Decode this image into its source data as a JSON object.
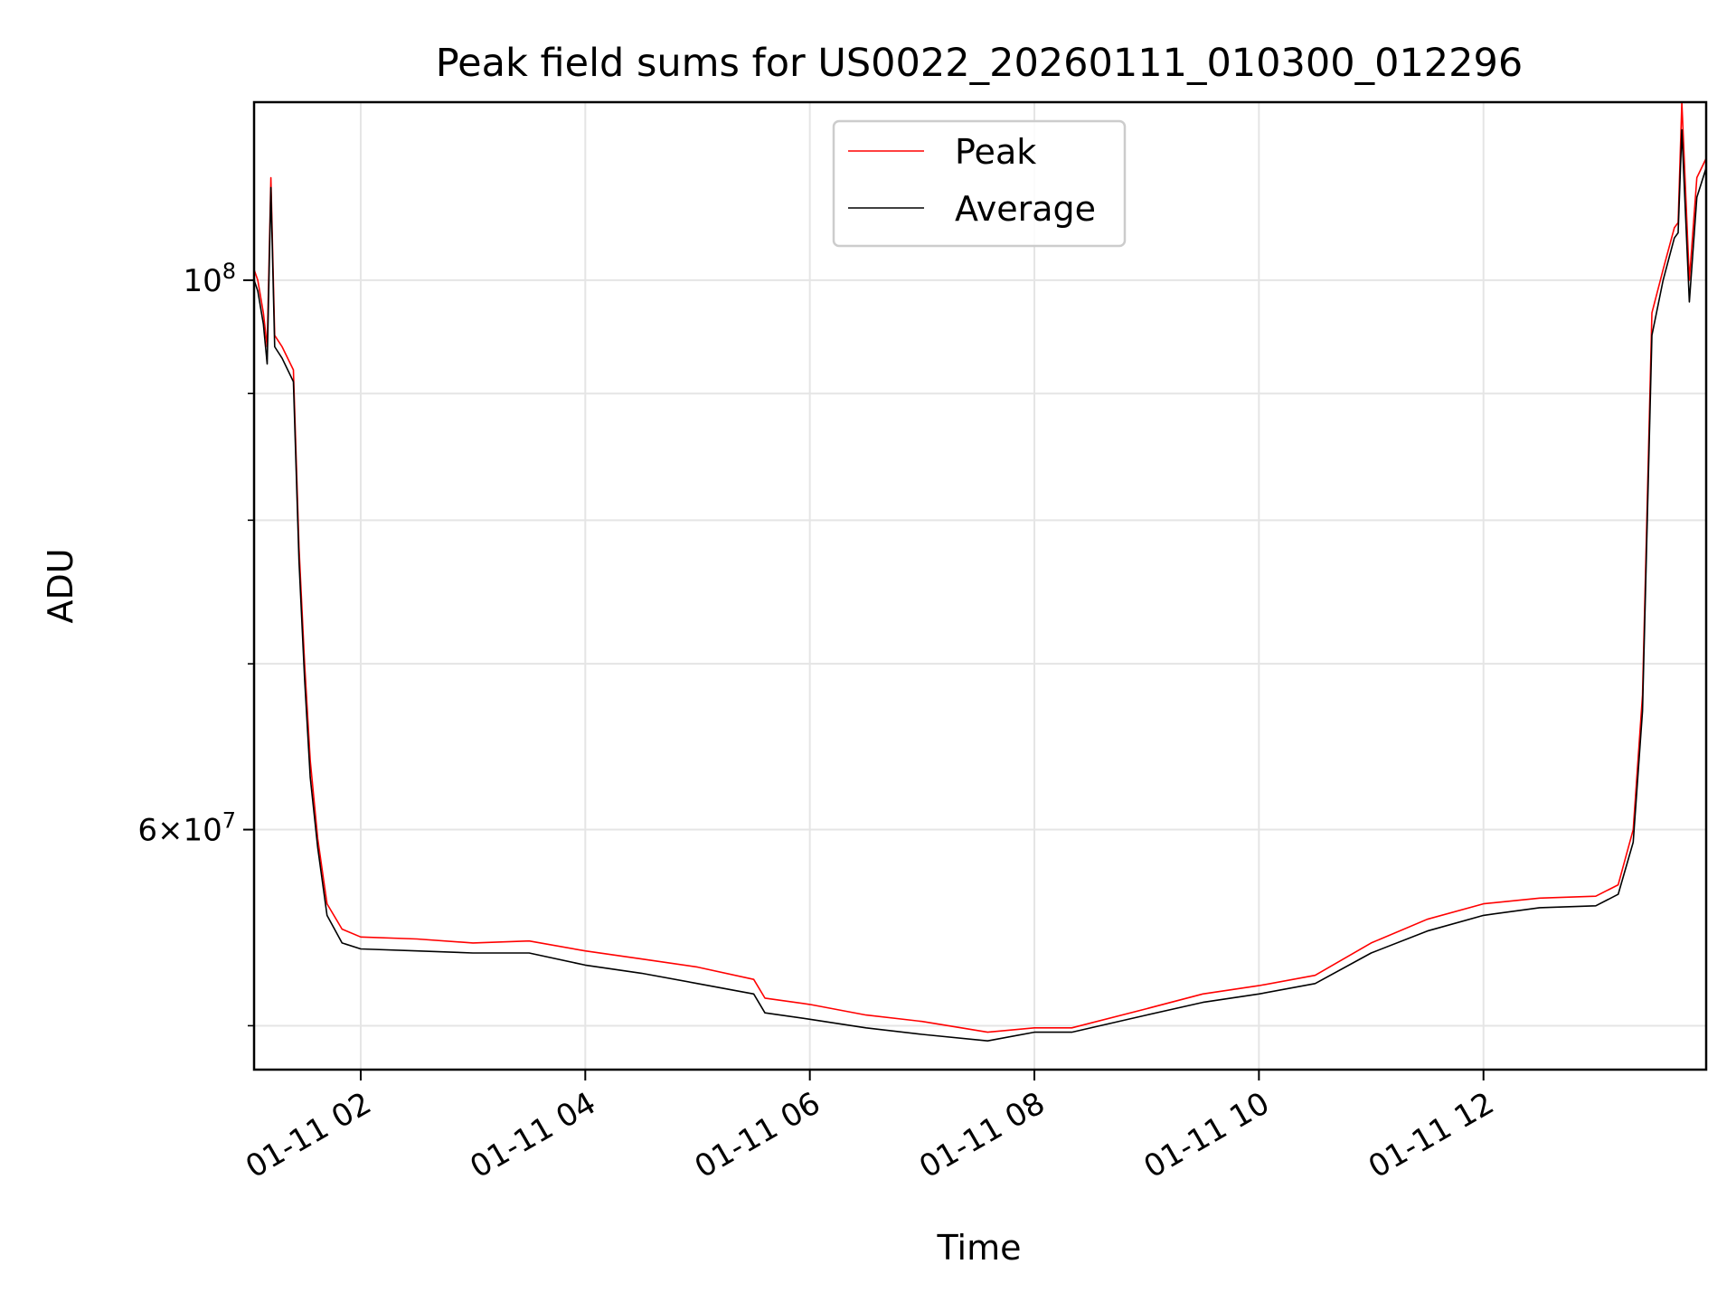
{
  "chart_data": {
    "type": "line",
    "title": "Peak field sums for US0022_20260111_010300_012296",
    "xlabel": "Time",
    "ylabel": "ADU",
    "y_scale": "log",
    "grid": true,
    "legend_placement": "upper center",
    "x_tick_labels": [
      "01-11 02",
      "01-11 04",
      "01-11 06",
      "01-11 08",
      "01-11 10",
      "01-11 12"
    ],
    "y_tick_labels": [
      {
        "value": 100000000,
        "mantissa": "",
        "exponent": "8"
      },
      {
        "value": 60000000,
        "mantissa": "6",
        "exponent": "7"
      }
    ],
    "xlim": [
      "2026-01-11 01:03",
      "2026-01-11 13:59"
    ],
    "ylim": [
      48000000,
      118000000
    ],
    "series": [
      {
        "name": "Peak",
        "color": "#ff0000",
        "points": [
          [
            "2026-01-11 01:03",
            101000000
          ],
          [
            "2026-01-11 01:05",
            100000000
          ],
          [
            "2026-01-11 01:08",
            97000000
          ],
          [
            "2026-01-11 01:10",
            94000000
          ],
          [
            "2026-01-11 01:12",
            110000000
          ],
          [
            "2026-01-11 01:14",
            95000000
          ],
          [
            "2026-01-11 01:18",
            94000000
          ],
          [
            "2026-01-11 01:24",
            92000000
          ],
          [
            "2026-01-11 01:27",
            78000000
          ],
          [
            "2026-01-11 01:30",
            70000000
          ],
          [
            "2026-01-11 01:33",
            64000000
          ],
          [
            "2026-01-11 01:37",
            59500000
          ],
          [
            "2026-01-11 01:42",
            56000000
          ],
          [
            "2026-01-11 01:50",
            54700000
          ],
          [
            "2026-01-11 02:00",
            54300000
          ],
          [
            "2026-01-11 02:30",
            54200000
          ],
          [
            "2026-01-11 03:00",
            54000000
          ],
          [
            "2026-01-11 03:30",
            54100000
          ],
          [
            "2026-01-11 04:00",
            53600000
          ],
          [
            "2026-01-11 04:30",
            53200000
          ],
          [
            "2026-01-11 05:00",
            52800000
          ],
          [
            "2026-01-11 05:30",
            52200000
          ],
          [
            "2026-01-11 05:36",
            51300000
          ],
          [
            "2026-01-11 06:00",
            51000000
          ],
          [
            "2026-01-11 06:30",
            50500000
          ],
          [
            "2026-01-11 07:00",
            50200000
          ],
          [
            "2026-01-11 07:35",
            49700000
          ],
          [
            "2026-01-11 08:00",
            49900000
          ],
          [
            "2026-01-11 08:20",
            49900000
          ],
          [
            "2026-01-11 09:00",
            50800000
          ],
          [
            "2026-01-11 09:30",
            51500000
          ],
          [
            "2026-01-11 10:00",
            51900000
          ],
          [
            "2026-01-11 10:30",
            52400000
          ],
          [
            "2026-01-11 11:00",
            54000000
          ],
          [
            "2026-01-11 11:30",
            55200000
          ],
          [
            "2026-01-11 12:00",
            56000000
          ],
          [
            "2026-01-11 12:30",
            56300000
          ],
          [
            "2026-01-11 13:00",
            56400000
          ],
          [
            "2026-01-11 13:12",
            57000000
          ],
          [
            "2026-01-11 13:20",
            60000000
          ],
          [
            "2026-01-11 13:25",
            68000000
          ],
          [
            "2026-01-11 13:30",
            97000000
          ],
          [
            "2026-01-11 13:36",
            101000000
          ],
          [
            "2026-01-11 13:42",
            105000000
          ],
          [
            "2026-01-11 13:44",
            105500000
          ],
          [
            "2026-01-11 13:46",
            118000000
          ],
          [
            "2026-01-11 13:50",
            100000000
          ],
          [
            "2026-01-11 13:54",
            110000000
          ],
          [
            "2026-01-11 13:59",
            112000000
          ]
        ]
      },
      {
        "name": "Average",
        "color": "#000000",
        "points": [
          [
            "2026-01-11 01:03",
            100000000
          ],
          [
            "2026-01-11 01:05",
            99000000
          ],
          [
            "2026-01-11 01:08",
            96000000
          ],
          [
            "2026-01-11 01:10",
            92500000
          ],
          [
            "2026-01-11 01:12",
            109000000
          ],
          [
            "2026-01-11 01:14",
            94000000
          ],
          [
            "2026-01-11 01:18",
            93000000
          ],
          [
            "2026-01-11 01:24",
            91000000
          ],
          [
            "2026-01-11 01:27",
            77000000
          ],
          [
            "2026-01-11 01:30",
            69000000
          ],
          [
            "2026-01-11 01:33",
            63000000
          ],
          [
            "2026-01-11 01:37",
            59000000
          ],
          [
            "2026-01-11 01:42",
            55400000
          ],
          [
            "2026-01-11 01:50",
            54000000
          ],
          [
            "2026-01-11 02:00",
            53700000
          ],
          [
            "2026-01-11 02:30",
            53600000
          ],
          [
            "2026-01-11 03:00",
            53500000
          ],
          [
            "2026-01-11 03:30",
            53500000
          ],
          [
            "2026-01-11 04:00",
            52900000
          ],
          [
            "2026-01-11 04:30",
            52500000
          ],
          [
            "2026-01-11 05:00",
            52000000
          ],
          [
            "2026-01-11 05:30",
            51500000
          ],
          [
            "2026-01-11 05:36",
            50600000
          ],
          [
            "2026-01-11 06:00",
            50300000
          ],
          [
            "2026-01-11 06:30",
            49900000
          ],
          [
            "2026-01-11 07:00",
            49600000
          ],
          [
            "2026-01-11 07:35",
            49300000
          ],
          [
            "2026-01-11 08:00",
            49700000
          ],
          [
            "2026-01-11 08:20",
            49700000
          ],
          [
            "2026-01-11 09:00",
            50500000
          ],
          [
            "2026-01-11 09:30",
            51100000
          ],
          [
            "2026-01-11 10:00",
            51500000
          ],
          [
            "2026-01-11 10:30",
            52000000
          ],
          [
            "2026-01-11 11:00",
            53500000
          ],
          [
            "2026-01-11 11:30",
            54600000
          ],
          [
            "2026-01-11 12:00",
            55400000
          ],
          [
            "2026-01-11 12:30",
            55800000
          ],
          [
            "2026-01-11 13:00",
            55900000
          ],
          [
            "2026-01-11 13:12",
            56500000
          ],
          [
            "2026-01-11 13:20",
            59300000
          ],
          [
            "2026-01-11 13:25",
            67000000
          ],
          [
            "2026-01-11 13:30",
            95000000
          ],
          [
            "2026-01-11 13:36",
            100000000
          ],
          [
            "2026-01-11 13:42",
            104000000
          ],
          [
            "2026-01-11 13:44",
            104500000
          ],
          [
            "2026-01-11 13:46",
            115000000
          ],
          [
            "2026-01-11 13:50",
            98000000
          ],
          [
            "2026-01-11 13:54",
            108000000
          ],
          [
            "2026-01-11 13:59",
            111000000
          ]
        ]
      }
    ]
  }
}
